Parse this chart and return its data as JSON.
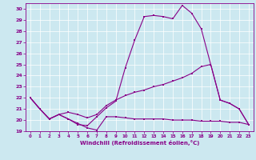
{
  "xlabel": "Windchill (Refroidissement éolien,°C)",
  "bg_color": "#cce8f0",
  "line_color": "#880088",
  "xlim": [
    -0.5,
    23.5
  ],
  "ylim": [
    19,
    30.5
  ],
  "yticks": [
    19,
    20,
    21,
    22,
    23,
    24,
    25,
    26,
    27,
    28,
    29,
    30
  ],
  "xticks": [
    0,
    1,
    2,
    3,
    4,
    5,
    6,
    7,
    8,
    9,
    10,
    11,
    12,
    13,
    14,
    15,
    16,
    17,
    18,
    19,
    20,
    21,
    22,
    23
  ],
  "line1_x": [
    0,
    1,
    2,
    3,
    4,
    5,
    6,
    7,
    8,
    9,
    10,
    11,
    12,
    13,
    14,
    15,
    16,
    17,
    18,
    19,
    20,
    21,
    22,
    23
  ],
  "line1_y": [
    22.0,
    21.0,
    20.1,
    20.5,
    20.1,
    19.7,
    19.3,
    19.1,
    20.3,
    20.3,
    20.2,
    20.1,
    20.1,
    20.1,
    20.1,
    20.0,
    20.0,
    20.0,
    19.9,
    19.9,
    19.9,
    19.8,
    19.8,
    19.6
  ],
  "line2_x": [
    0,
    1,
    2,
    3,
    4,
    5,
    6,
    7,
    8,
    9,
    10,
    11,
    12,
    13,
    14,
    15,
    16,
    17,
    18,
    19,
    20,
    21,
    22,
    23
  ],
  "line2_y": [
    22.0,
    21.0,
    20.1,
    20.5,
    20.7,
    20.5,
    20.2,
    20.5,
    21.3,
    21.8,
    22.2,
    22.5,
    22.7,
    23.0,
    23.2,
    23.5,
    23.8,
    24.2,
    24.8,
    25.0,
    21.8,
    21.5,
    21.0,
    19.6
  ],
  "line3_x": [
    0,
    1,
    2,
    3,
    4,
    5,
    6,
    7,
    8,
    9,
    10,
    11,
    12,
    13,
    14,
    15,
    16,
    17,
    18,
    19,
    20,
    21,
    22,
    23
  ],
  "line3_y": [
    22.0,
    21.0,
    20.1,
    20.5,
    20.1,
    19.6,
    19.5,
    20.3,
    21.1,
    21.7,
    24.7,
    27.2,
    29.3,
    29.4,
    29.3,
    29.1,
    30.3,
    29.6,
    28.2,
    25.0,
    21.8,
    21.5,
    21.0,
    19.6
  ]
}
